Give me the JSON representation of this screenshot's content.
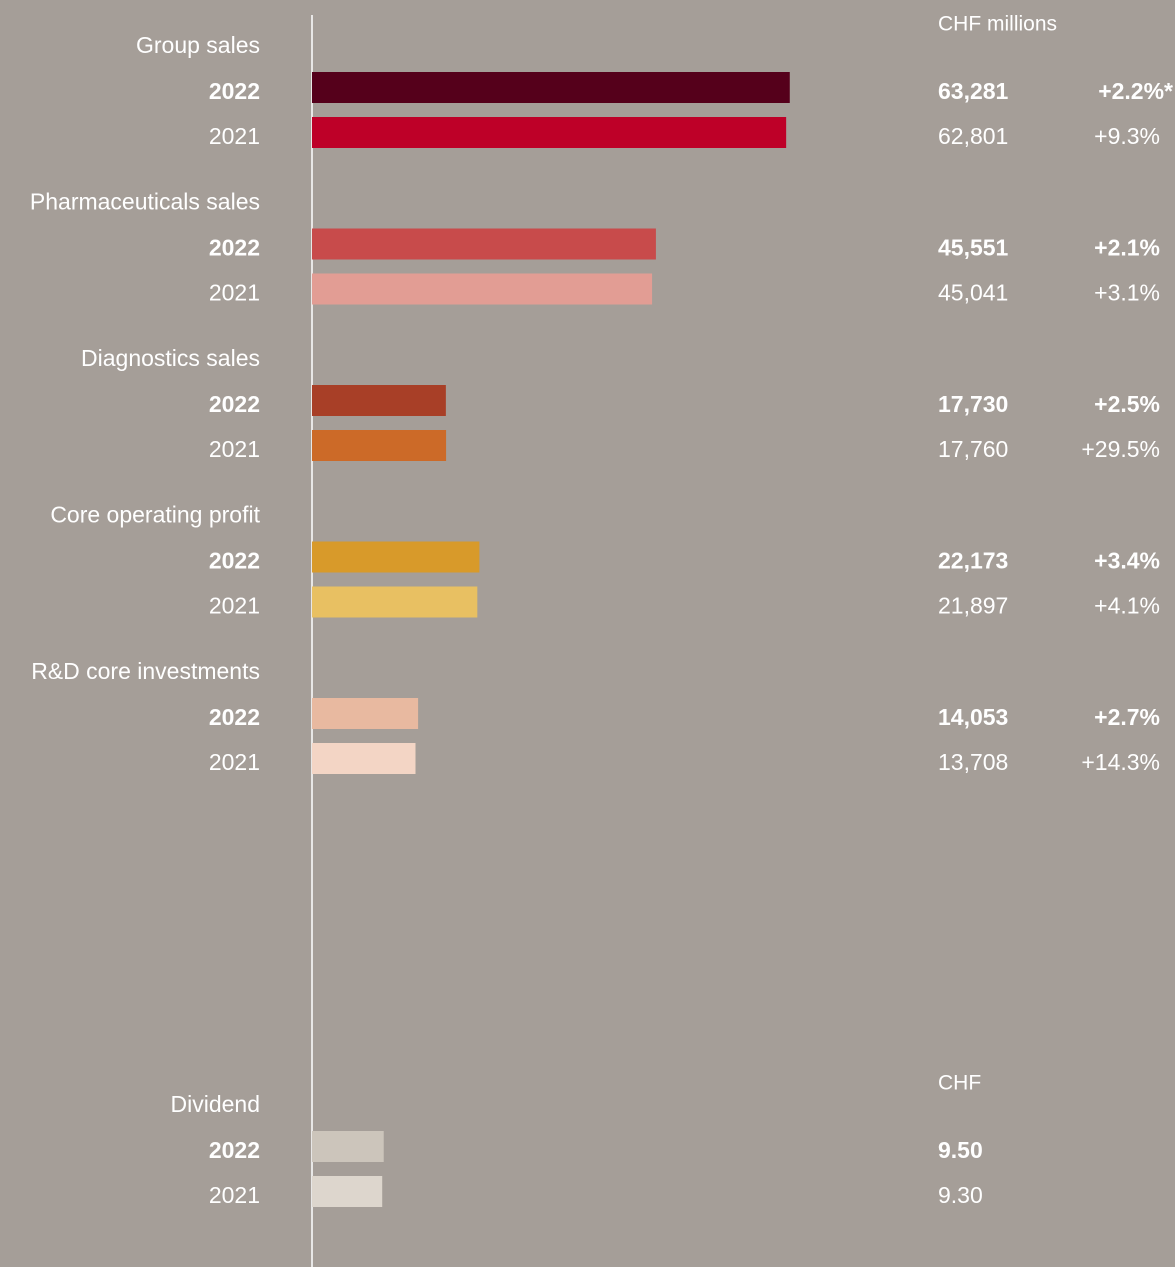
{
  "chart_data": [
    {
      "type": "bar",
      "orientation": "horizontal",
      "unit_label": "CHF millions",
      "xlim": [
        0,
        80000
      ],
      "groups": [
        {
          "label": "Group sales",
          "categories": [
            "2022",
            "2021"
          ],
          "values": [
            63281,
            62801
          ],
          "value_labels": [
            "63,281",
            "62,801"
          ],
          "changes": [
            "+2.2%*",
            "+9.3%"
          ],
          "colors": [
            "#55001b",
            "#be0028"
          ]
        },
        {
          "label": "Pharmaceuticals sales",
          "categories": [
            "2022",
            "2021"
          ],
          "values": [
            45551,
            45041
          ],
          "value_labels": [
            "45,551",
            "45,041"
          ],
          "changes": [
            "+2.1%",
            "+3.1%"
          ],
          "colors": [
            "#c84b4b",
            "#e29d94"
          ]
        },
        {
          "label": "Diagnostics sales",
          "categories": [
            "2022",
            "2021"
          ],
          "values": [
            17730,
            17760
          ],
          "value_labels": [
            "17,730",
            "17,760"
          ],
          "changes": [
            "+2.5%",
            "+29.5%"
          ],
          "colors": [
            "#a83f27",
            "#cc6a28"
          ]
        },
        {
          "label": "Core operating profit",
          "categories": [
            "2022",
            "2021"
          ],
          "values": [
            22173,
            21897
          ],
          "value_labels": [
            "22,173",
            "21,897"
          ],
          "changes": [
            "+3.4%",
            "+4.1%"
          ],
          "colors": [
            "#d89a2a",
            "#e8c062"
          ]
        },
        {
          "label": "R&D core investments",
          "categories": [
            "2022",
            "2021"
          ],
          "values": [
            14053,
            13708
          ],
          "value_labels": [
            "14,053",
            "13,708"
          ],
          "changes": [
            "+2.7%",
            "+14.3%"
          ],
          "colors": [
            "#e8b9a0",
            "#f3d5c5"
          ]
        }
      ]
    },
    {
      "type": "bar",
      "orientation": "horizontal",
      "unit_label": "CHF",
      "xlim": [
        0,
        80
      ],
      "groups": [
        {
          "label": "Dividend",
          "categories": [
            "2022",
            "2021"
          ],
          "values": [
            9.5,
            9.3
          ],
          "value_labels": [
            "9.50",
            "9.30"
          ],
          "colors": [
            "#ccc5bb",
            "#ddd6cd"
          ]
        }
      ]
    }
  ]
}
